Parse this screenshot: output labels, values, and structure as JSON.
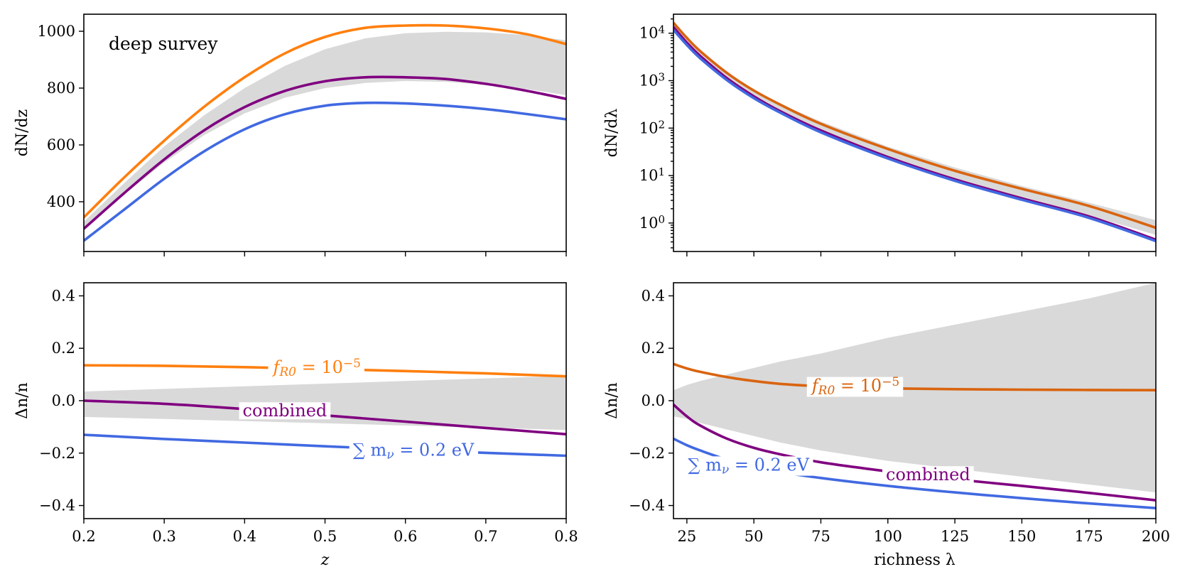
{
  "colors": {
    "fR0": "#ff7f0e",
    "fR0_dark": "#d9640f",
    "combined": "#800080",
    "mnu": "#4169e1",
    "band": "#d9d9d9"
  },
  "chart_data": [
    {
      "id": "top-left",
      "type": "line",
      "xlabel": "",
      "ylabel": "dN/dz",
      "xlim": [
        0.2,
        0.8
      ],
      "ylim": [
        225,
        1060
      ],
      "xscale": "linear",
      "yscale": "linear",
      "xticks": [
        0.2,
        0.3,
        0.4,
        0.5,
        0.6,
        0.7,
        0.8
      ],
      "show_xtick_labels": false,
      "yticks": [
        400,
        600,
        800,
        1000
      ],
      "ytick_labels": [
        "400",
        "600",
        "800",
        "1000"
      ],
      "annotation": "deep survey",
      "x": [
        0.2,
        0.25,
        0.3,
        0.35,
        0.4,
        0.45,
        0.5,
        0.55,
        0.6,
        0.65,
        0.7,
        0.75,
        0.8
      ],
      "band": {
        "lower": [
          306,
          425,
          538,
          635,
          711,
          766,
          800,
          818,
          825,
          822,
          812,
          797,
          775
        ],
        "upper": [
          330,
          465,
          595,
          705,
          800,
          878,
          937,
          975,
          993,
          998,
          996,
          987,
          968
        ]
      },
      "series": [
        {
          "key": "fR0",
          "color": "#ff7f0e",
          "values": [
            345,
            485,
            615,
            735,
            838,
            922,
            980,
            1012,
            1020,
            1020,
            1010,
            990,
            955
          ]
        },
        {
          "key": "combined",
          "color": "#800080",
          "values": [
            305,
            430,
            549,
            652,
            733,
            790,
            824,
            838,
            838,
            832,
            815,
            791,
            762
          ]
        },
        {
          "key": "mnu",
          "color": "#4169e1",
          "values": [
            263,
            372,
            481,
            578,
            655,
            708,
            738,
            748,
            746,
            738,
            726,
            709,
            690
          ]
        }
      ]
    },
    {
      "id": "top-right",
      "type": "line",
      "xlabel": "",
      "ylabel": "dN/dλ",
      "xlim": [
        20,
        200
      ],
      "ylim_log10": [
        -0.6,
        4.4
      ],
      "xscale": "linear",
      "yscale": "log",
      "xticks": [
        25,
        50,
        75,
        100,
        125,
        150,
        175,
        200
      ],
      "show_xtick_labels": false,
      "yticks_log10": [
        0,
        1,
        2,
        3,
        4
      ],
      "ytick_labels": [
        "10",
        "10",
        "10",
        "10",
        "10"
      ],
      "ytick_exponents": [
        "0",
        "1",
        "2",
        "3",
        "4"
      ],
      "x": [
        20,
        25,
        30,
        40,
        50,
        60,
        75,
        100,
        125,
        150,
        175,
        200
      ],
      "band": {
        "lower_log10": [
          4.06,
          3.74,
          3.46,
          3.0,
          2.62,
          2.31,
          1.9,
          1.35,
          0.9,
          0.51,
          0.16,
          -0.25
        ],
        "upper_log10": [
          4.22,
          3.9,
          3.63,
          3.18,
          2.81,
          2.51,
          2.14,
          1.61,
          1.17,
          0.78,
          0.43,
          0.06
        ]
      },
      "series": [
        {
          "key": "fR0",
          "color": "#d9640f",
          "values_log10": [
            4.22,
            3.9,
            3.62,
            3.16,
            2.79,
            2.49,
            2.09,
            1.56,
            1.1,
            0.72,
            0.36,
            -0.1
          ]
        },
        {
          "key": "combined",
          "color": "#800080",
          "values_log10": [
            4.13,
            3.8,
            3.52,
            3.05,
            2.67,
            2.35,
            1.95,
            1.39,
            0.92,
            0.52,
            0.14,
            -0.35
          ]
        },
        {
          "key": "mnu",
          "color": "#4169e1",
          "values_log10": [
            4.07,
            3.75,
            3.47,
            3.01,
            2.63,
            2.32,
            1.91,
            1.36,
            0.89,
            0.49,
            0.11,
            -0.38
          ]
        }
      ]
    },
    {
      "id": "bottom-left",
      "type": "line",
      "xlabel": "z",
      "ylabel": "Δn/n",
      "xlim": [
        0.2,
        0.8
      ],
      "ylim": [
        -0.45,
        0.45
      ],
      "xscale": "linear",
      "yscale": "linear",
      "xticks": [
        0.2,
        0.3,
        0.4,
        0.5,
        0.6,
        0.7,
        0.8
      ],
      "xtick_labels": [
        "0.2",
        "0.3",
        "0.4",
        "0.5",
        "0.6",
        "0.7",
        "0.8"
      ],
      "show_xtick_labels": true,
      "yticks": [
        -0.4,
        -0.2,
        0.0,
        0.2,
        0.4
      ],
      "ytick_labels": [
        "−0.4",
        "−0.2",
        "0.0",
        "0.2",
        "0.4"
      ],
      "x": [
        0.2,
        0.3,
        0.4,
        0.5,
        0.6,
        0.7,
        0.8
      ],
      "band": {
        "lower": [
          -0.062,
          -0.07,
          -0.078,
          -0.086,
          -0.095,
          -0.103,
          -0.112
        ],
        "upper": [
          0.035,
          0.045,
          0.055,
          0.065,
          0.075,
          0.085,
          0.094
        ]
      },
      "series": [
        {
          "key": "fR0",
          "color": "#ff7f0e",
          "values": [
            0.135,
            0.133,
            0.128,
            0.121,
            0.113,
            0.104,
            0.093
          ],
          "label": "f",
          "label_sub": "R0",
          "label_tail": " = 10",
          "label_sup": "−5",
          "label_x": 0.49,
          "label_dy": 6
        },
        {
          "key": "combined",
          "color": "#800080",
          "values": [
            0.0,
            -0.012,
            -0.032,
            -0.056,
            -0.08,
            -0.104,
            -0.128
          ],
          "label": "combined",
          "label_x": 0.45,
          "label_dy": 6
        },
        {
          "key": "mnu",
          "color": "#4169e1",
          "values": [
            -0.13,
            -0.146,
            -0.16,
            -0.174,
            -0.187,
            -0.199,
            -0.21
          ],
          "label": "∑ m",
          "label_sub": "ν",
          "label_tail": " = 0.2 eV",
          "label_x": 0.61,
          "label_dy": 8
        }
      ]
    },
    {
      "id": "bottom-right",
      "type": "line",
      "xlabel": "richness λ",
      "ylabel": "Δn/n",
      "xlim": [
        20,
        200
      ],
      "ylim": [
        -0.45,
        0.45
      ],
      "xscale": "linear",
      "yscale": "linear",
      "xticks": [
        25,
        50,
        75,
        100,
        125,
        150,
        175,
        200
      ],
      "xtick_labels": [
        "25",
        "50",
        "75",
        "100",
        "125",
        "150",
        "175",
        "200"
      ],
      "show_xtick_labels": true,
      "yticks": [
        -0.4,
        -0.2,
        0.0,
        0.2,
        0.4
      ],
      "ytick_labels": [
        "−0.4",
        "−0.2",
        "0.0",
        "0.2",
        "0.4"
      ],
      "x": [
        20,
        25,
        30,
        40,
        50,
        60,
        75,
        100,
        125,
        150,
        175,
        200
      ],
      "band": {
        "lower": [
          -0.06,
          -0.07,
          -0.085,
          -0.11,
          -0.135,
          -0.16,
          -0.19,
          -0.23,
          -0.26,
          -0.29,
          -0.32,
          -0.35
        ],
        "upper": [
          0.04,
          0.06,
          0.075,
          0.1,
          0.125,
          0.15,
          0.18,
          0.24,
          0.29,
          0.34,
          0.39,
          0.45
        ]
      },
      "series": [
        {
          "key": "fR0",
          "color": "#d9640f",
          "values": [
            0.14,
            0.123,
            0.11,
            0.09,
            0.075,
            0.064,
            0.055,
            0.047,
            0.044,
            0.042,
            0.041,
            0.04
          ],
          "label": "f",
          "label_sub": "R0",
          "label_tail": " = 10",
          "label_sup": "−5",
          "label_x": 88,
          "label_dy": 6
        },
        {
          "key": "combined",
          "color": "#800080",
          "values": [
            -0.015,
            -0.06,
            -0.095,
            -0.145,
            -0.18,
            -0.205,
            -0.235,
            -0.27,
            -0.3,
            -0.325,
            -0.352,
            -0.38
          ],
          "label": "combined",
          "label_x": 115,
          "label_dy": 6
        },
        {
          "key": "mnu",
          "color": "#4169e1",
          "values": [
            -0.145,
            -0.17,
            -0.19,
            -0.225,
            -0.25,
            -0.272,
            -0.295,
            -0.325,
            -0.35,
            -0.372,
            -0.392,
            -0.41
          ],
          "label": "∑ m",
          "label_sub": "ν",
          "label_tail": " = 0.2 eV",
          "label_x": 48,
          "label_dy": 8
        }
      ]
    }
  ]
}
